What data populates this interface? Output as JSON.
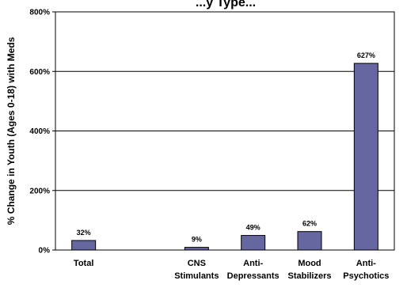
{
  "chart_data": {
    "type": "bar",
    "title": "...y Type...",
    "ylabel": "% Change in Youth (Ages 0-18) with Meds",
    "xlabel": "",
    "ylim": [
      0,
      800
    ],
    "yticks": [
      "0%",
      "200%",
      "400%",
      "600%",
      "800%"
    ],
    "ytick_values": [
      0,
      200,
      400,
      600,
      800
    ],
    "grid": true,
    "categories": [
      [
        "Total"
      ],
      [],
      [
        "CNS",
        "Stimulants"
      ],
      [
        "Anti-",
        "Depressants"
      ],
      [
        "Mood",
        "Stabilizers"
      ],
      [
        "Anti-",
        "Psychotics"
      ]
    ],
    "values": [
      32,
      null,
      9,
      49,
      62,
      627
    ],
    "data_labels": [
      "32%",
      "",
      "9%",
      "49%",
      "62%",
      "627%"
    ],
    "bar_color": "#6666a0"
  }
}
